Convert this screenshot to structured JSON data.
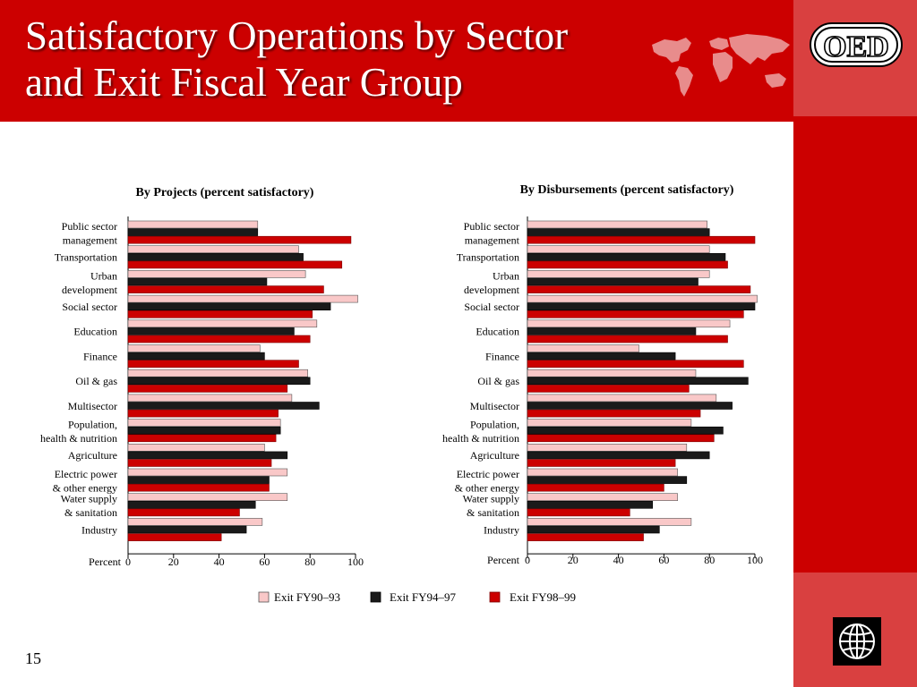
{
  "slide": {
    "title_line1": "Satisfactory Operations by Sector",
    "title_line2": "and Exit Fiscal Year Group",
    "number": "15",
    "logo_text": "OED"
  },
  "colors": {
    "header_red": "#cc0000",
    "fy90_93": "#f9c8c8",
    "fy94_97": "#1a1a1a",
    "fy98_99": "#cc0000"
  },
  "legend": [
    "Exit FY90–93",
    "Exit FY94–97",
    "Exit FY98–99"
  ],
  "chart_data": [
    {
      "type": "bar",
      "orientation": "horizontal",
      "title": "By Projects (percent satisfactory)",
      "xlabel": "Percent",
      "xlim": [
        0,
        100
      ],
      "xticks": [
        "0",
        "20",
        "40",
        "60",
        "80",
        "100"
      ],
      "categories": [
        [
          "Public sector",
          "management"
        ],
        [
          "Transportation"
        ],
        [
          "Urban",
          "development"
        ],
        [
          "Social sector"
        ],
        [
          "Education"
        ],
        [
          "Finance"
        ],
        [
          "Oil & gas"
        ],
        [
          "Multisector"
        ],
        [
          "Population,",
          "health & nutrition"
        ],
        [
          "Agriculture"
        ],
        [
          "Electric power",
          "& other energy"
        ],
        [
          "Water supply",
          "& sanitation"
        ],
        [
          "Industry"
        ]
      ],
      "series": [
        {
          "name": "Exit FY90–93",
          "values": [
            57,
            75,
            78,
            101,
            83,
            58,
            79,
            72,
            67,
            60,
            70,
            70,
            59
          ]
        },
        {
          "name": "Exit FY94–97",
          "values": [
            57,
            77,
            61,
            89,
            73,
            60,
            80,
            84,
            67,
            70,
            62,
            56,
            52
          ]
        },
        {
          "name": "Exit FY98–99",
          "values": [
            98,
            94,
            86,
            81,
            80,
            75,
            70,
            66,
            65,
            63,
            62,
            49,
            41
          ]
        }
      ]
    },
    {
      "type": "bar",
      "orientation": "horizontal",
      "title": "By Disbursements (percent satisfactory)",
      "xlabel": "Percent",
      "xlim": [
        0,
        100
      ],
      "xticks": [
        "0",
        "20",
        "40",
        "60",
        "80",
        "100"
      ],
      "categories": [
        [
          "Public sector",
          "management"
        ],
        [
          "Transportation"
        ],
        [
          "Urban",
          "development"
        ],
        [
          "Social sector"
        ],
        [
          "Education"
        ],
        [
          "Finance"
        ],
        [
          "Oil & gas"
        ],
        [
          "Multisector"
        ],
        [
          "Population,",
          "health & nutrition"
        ],
        [
          "Agriculture"
        ],
        [
          "Electric power",
          "& other energy"
        ],
        [
          "Water supply",
          "& sanitation"
        ],
        [
          "Industry"
        ]
      ],
      "series": [
        {
          "name": "Exit FY90–93",
          "values": [
            79,
            80,
            80,
            101,
            89,
            49,
            74,
            83,
            72,
            70,
            66,
            66,
            72
          ]
        },
        {
          "name": "Exit FY94–97",
          "values": [
            80,
            87,
            75,
            100,
            74,
            65,
            97,
            90,
            86,
            80,
            70,
            55,
            58
          ]
        },
        {
          "name": "Exit FY98–99",
          "values": [
            100,
            88,
            98,
            95,
            88,
            95,
            71,
            76,
            82,
            65,
            60,
            45,
            51
          ]
        }
      ]
    }
  ]
}
